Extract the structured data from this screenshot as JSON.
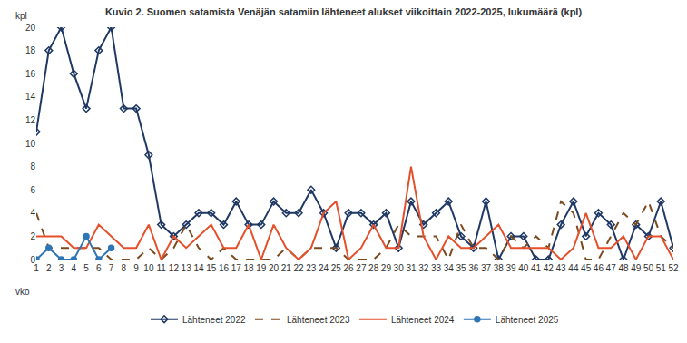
{
  "chart_data": {
    "type": "line",
    "title": "Kuvio 2. Suomen satamista Venäjän satamiin lähteneet alukset viikoittain 2022-2025, lukumäärä (kpl)",
    "y_label": "kpl",
    "x_label": "vko",
    "x": [
      1,
      2,
      3,
      4,
      5,
      6,
      7,
      8,
      9,
      10,
      11,
      12,
      13,
      14,
      15,
      16,
      17,
      18,
      19,
      20,
      21,
      22,
      23,
      24,
      25,
      26,
      27,
      28,
      29,
      30,
      31,
      32,
      33,
      34,
      35,
      36,
      37,
      38,
      39,
      40,
      41,
      42,
      43,
      44,
      45,
      46,
      47,
      48,
      49,
      50,
      51,
      52
    ],
    "xlim": [
      1,
      52
    ],
    "xticks": [
      1,
      2,
      3,
      4,
      5,
      6,
      7,
      8,
      9,
      10,
      11,
      12,
      13,
      14,
      15,
      16,
      17,
      18,
      19,
      20,
      21,
      22,
      23,
      24,
      25,
      26,
      27,
      28,
      29,
      30,
      31,
      32,
      33,
      34,
      35,
      36,
      37,
      38,
      39,
      40,
      41,
      42,
      43,
      44,
      45,
      46,
      47,
      48,
      49,
      50,
      51,
      52
    ],
    "ylim": [
      0,
      20
    ],
    "yticks": [
      0,
      2,
      4,
      6,
      8,
      10,
      12,
      14,
      16,
      18,
      20
    ],
    "grid": false,
    "legend": "bottom",
    "series": [
      {
        "name": "Lähteneet 2022",
        "color": "#1f3864",
        "marker": "diamond-open",
        "line_style": "solid",
        "values": [
          11,
          18,
          20,
          16,
          13,
          18,
          20,
          13,
          13,
          9,
          3,
          2,
          3,
          4,
          4,
          3,
          5,
          3,
          3,
          5,
          4,
          4,
          6,
          4,
          1,
          4,
          4,
          3,
          4,
          1,
          5,
          3,
          4,
          5,
          2,
          1,
          5,
          0,
          2,
          2,
          0,
          0,
          3,
          5,
          2,
          4,
          3,
          0,
          3,
          2,
          5,
          1
        ]
      },
      {
        "name": "Lähteneet 2023",
        "color": "#7b4a1e",
        "marker": "none",
        "line_style": "dash",
        "values": [
          4,
          1,
          1,
          1,
          1,
          1,
          0,
          0,
          0,
          1,
          0,
          1,
          3,
          1,
          0,
          1,
          0,
          0,
          0,
          0,
          1,
          0,
          1,
          1,
          1,
          0,
          0,
          0,
          1,
          3,
          2,
          2,
          2,
          0,
          3,
          1,
          1,
          0,
          2,
          1,
          2,
          1,
          5,
          4,
          0,
          0,
          2,
          4,
          3,
          5,
          2,
          1
        ]
      },
      {
        "name": "Lähteneet 2024",
        "color": "#e5502b",
        "marker": "none",
        "line_style": "solid",
        "values": [
          2,
          2,
          2,
          1,
          1,
          3,
          2,
          1,
          1,
          3,
          0,
          2,
          1,
          2,
          3,
          1,
          1,
          3,
          0,
          3,
          1,
          0,
          1,
          4,
          5,
          0,
          1,
          3,
          1,
          1,
          8,
          2,
          0,
          2,
          1,
          1,
          2,
          3,
          1,
          1,
          1,
          1,
          0,
          1,
          4,
          1,
          1,
          2,
          0,
          2,
          2,
          0
        ]
      },
      {
        "name": "Lähteneet 2025",
        "color": "#2e75b6",
        "marker": "circle",
        "line_style": "solid",
        "values": [
          0,
          1,
          0,
          0,
          2,
          0,
          1,
          null,
          null,
          null,
          null,
          null,
          null,
          null,
          null,
          null,
          null,
          null,
          null,
          null,
          null,
          null,
          null,
          null,
          null,
          null,
          null,
          null,
          null,
          null,
          null,
          null,
          null,
          null,
          null,
          null,
          null,
          null,
          null,
          null,
          null,
          null,
          null,
          null,
          null,
          null,
          null,
          null,
          null,
          null,
          null,
          null
        ]
      }
    ]
  }
}
